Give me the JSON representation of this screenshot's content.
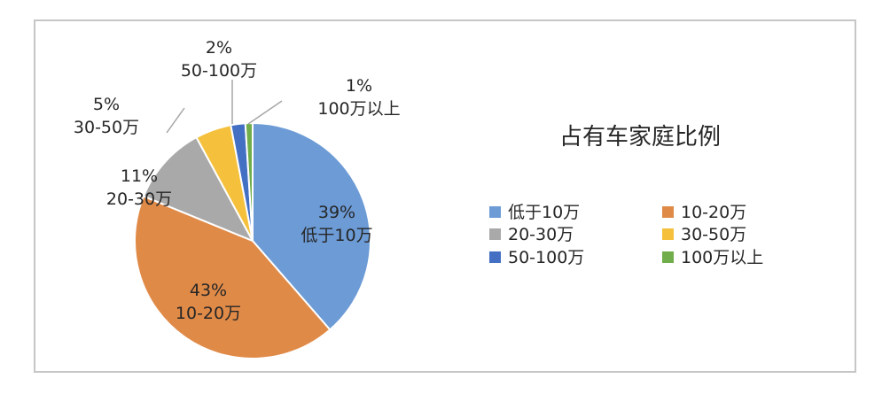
{
  "chart_data": {
    "type": "pie",
    "title": "占有车家庭比例",
    "categories": [
      "低于10万",
      "10-20万",
      "20-30万",
      "30-50万",
      "50-100万",
      "100万以上"
    ],
    "values": [
      39,
      43,
      11,
      5,
      2,
      1
    ],
    "value_labels": [
      "39%",
      "43%",
      "11%",
      "5%",
      "2%",
      "1%"
    ],
    "colors": [
      "#6c9bd6",
      "#e08a48",
      "#a9a9a9",
      "#f5c13d",
      "#4470c4",
      "#71ad4a"
    ],
    "legend_position": "right"
  }
}
